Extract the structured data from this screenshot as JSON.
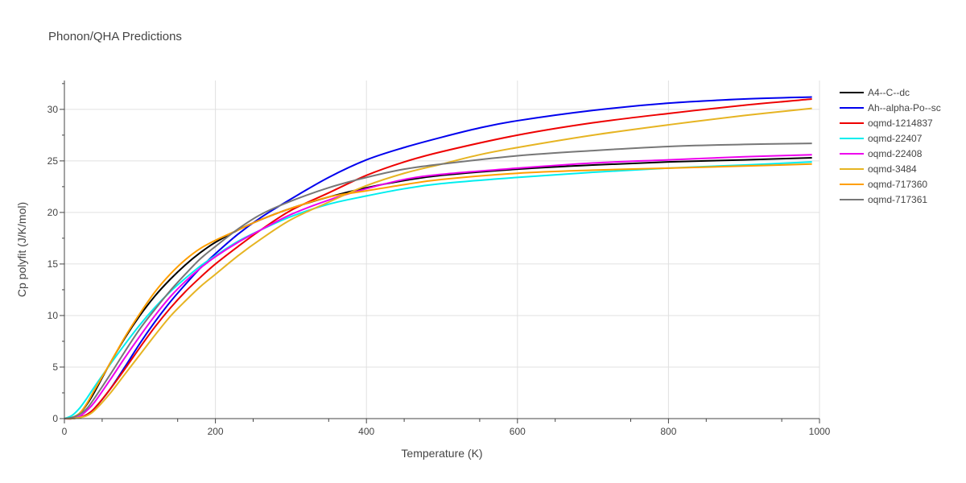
{
  "chart_data": {
    "type": "line",
    "title": "Phonon/QHA Predictions",
    "xlabel": "Temperature (K)",
    "ylabel": "Cp polyfit (J/K/mol)",
    "xlim": [
      0,
      1000
    ],
    "ylim": [
      0,
      32.8
    ],
    "xticks": [
      0,
      200,
      400,
      600,
      800,
      1000
    ],
    "yticks": [
      0,
      5,
      10,
      15,
      20,
      25,
      30
    ],
    "grid": true,
    "legend_position": "top-right",
    "series": [
      {
        "name": "A4--C--dc",
        "color": "#000000",
        "x": [
          0,
          10,
          20,
          30,
          40,
          60,
          80,
          100,
          120,
          140,
          160,
          180,
          200,
          230,
          260,
          300,
          350,
          400,
          450,
          500,
          600,
          700,
          800,
          900,
          990
        ],
        "y": [
          0,
          0.1,
          0.5,
          1.4,
          2.6,
          5.3,
          7.8,
          10.0,
          11.9,
          13.5,
          14.9,
          16.1,
          17.1,
          18.3,
          19.3,
          20.4,
          21.5,
          22.4,
          23.1,
          23.6,
          24.2,
          24.6,
          24.9,
          25.1,
          25.3
        ]
      },
      {
        "name": "Ah--alpha-Po--sc",
        "color": "#0000ee",
        "x": [
          0,
          10,
          20,
          30,
          40,
          60,
          80,
          100,
          120,
          140,
          160,
          180,
          200,
          230,
          260,
          300,
          350,
          400,
          450,
          500,
          550,
          600,
          700,
          800,
          900,
          990
        ],
        "y": [
          0,
          0,
          0.1,
          0.4,
          1.0,
          2.8,
          5.0,
          7.3,
          9.4,
          11.3,
          13.0,
          14.6,
          16.0,
          17.9,
          19.5,
          21.3,
          23.4,
          25.1,
          26.3,
          27.3,
          28.2,
          28.9,
          29.9,
          30.6,
          31.0,
          31.2
        ]
      },
      {
        "name": "oqmd-1214837",
        "color": "#ee0000",
        "x": [
          0,
          10,
          20,
          30,
          40,
          60,
          80,
          100,
          120,
          140,
          160,
          180,
          200,
          230,
          260,
          300,
          350,
          400,
          450,
          500,
          600,
          700,
          800,
          900,
          990
        ],
        "y": [
          0,
          0,
          0.1,
          0.4,
          1.0,
          2.8,
          4.8,
          6.9,
          8.9,
          10.7,
          12.3,
          13.7,
          15.0,
          16.7,
          18.3,
          20.2,
          21.9,
          23.6,
          24.9,
          25.9,
          27.5,
          28.7,
          29.6,
          30.4,
          31.0
        ]
      },
      {
        "name": "oqmd-22407",
        "color": "#00eeee",
        "x": [
          0,
          10,
          20,
          30,
          40,
          60,
          80,
          100,
          120,
          140,
          160,
          180,
          200,
          230,
          260,
          300,
          350,
          400,
          450,
          500,
          600,
          700,
          800,
          900,
          990
        ],
        "y": [
          0,
          0.3,
          1.0,
          2.0,
          3.1,
          5.2,
          7.2,
          9.1,
          10.8,
          12.3,
          13.6,
          14.8,
          15.8,
          17.2,
          18.3,
          19.6,
          20.8,
          21.6,
          22.3,
          22.8,
          23.4,
          23.9,
          24.3,
          24.6,
          24.9
        ]
      },
      {
        "name": "oqmd-22408",
        "color": "#ee00ee",
        "x": [
          0,
          10,
          20,
          30,
          40,
          60,
          80,
          100,
          120,
          140,
          160,
          180,
          200,
          230,
          260,
          300,
          350,
          400,
          450,
          500,
          600,
          700,
          800,
          900,
          990
        ],
        "y": [
          0,
          0,
          0.2,
          0.8,
          1.6,
          3.7,
          5.9,
          8.0,
          10.0,
          11.8,
          13.3,
          14.6,
          15.7,
          17.1,
          18.3,
          19.8,
          21.2,
          22.3,
          23.2,
          23.7,
          24.3,
          24.8,
          25.1,
          25.4,
          25.6
        ]
      },
      {
        "name": "oqmd-3484",
        "color": "#e6b422",
        "x": [
          0,
          10,
          20,
          30,
          40,
          60,
          80,
          100,
          120,
          140,
          160,
          180,
          200,
          230,
          260,
          300,
          350,
          400,
          450,
          500,
          550,
          600,
          700,
          800,
          900,
          990
        ],
        "y": [
          0,
          0,
          0.1,
          0.3,
          0.8,
          2.4,
          4.3,
          6.2,
          8.1,
          9.9,
          11.4,
          12.8,
          14.0,
          15.8,
          17.4,
          19.3,
          21.0,
          22.6,
          23.8,
          24.7,
          25.6,
          26.3,
          27.5,
          28.5,
          29.4,
          30.1
        ]
      },
      {
        "name": "oqmd-717360",
        "color": "#ff9f00",
        "x": [
          0,
          10,
          20,
          30,
          40,
          60,
          80,
          100,
          120,
          140,
          160,
          180,
          200,
          230,
          260,
          300,
          350,
          400,
          450,
          500,
          600,
          700,
          800,
          900,
          990
        ],
        "y": [
          0,
          0.1,
          0.5,
          1.5,
          2.8,
          5.3,
          7.9,
          10.2,
          12.3,
          14.0,
          15.4,
          16.5,
          17.3,
          18.3,
          19.3,
          20.4,
          21.5,
          22.1,
          22.7,
          23.2,
          23.8,
          24.1,
          24.3,
          24.5,
          24.7
        ]
      },
      {
        "name": "oqmd-717361",
        "color": "#777777",
        "x": [
          0,
          10,
          20,
          30,
          40,
          60,
          80,
          100,
          120,
          140,
          160,
          180,
          200,
          230,
          260,
          300,
          350,
          400,
          450,
          500,
          600,
          700,
          800,
          900,
          990
        ],
        "y": [
          0,
          0.1,
          0.4,
          1.0,
          2.0,
          4.2,
          6.5,
          8.7,
          10.6,
          12.4,
          14.0,
          15.5,
          16.7,
          18.4,
          19.8,
          21.1,
          22.4,
          23.4,
          24.2,
          24.7,
          25.5,
          26.0,
          26.4,
          26.6,
          26.7
        ]
      }
    ]
  }
}
